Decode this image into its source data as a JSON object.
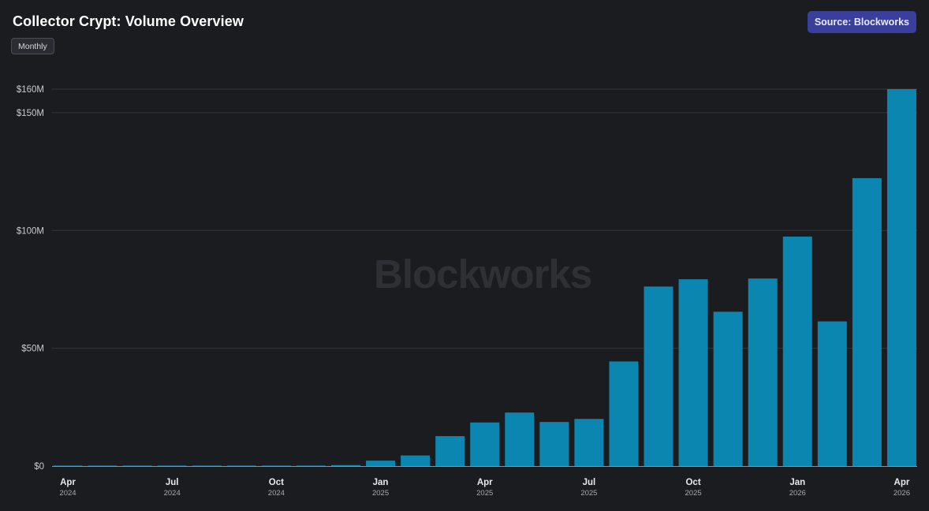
{
  "header": {
    "title": "Collector Crypt: Volume Overview",
    "period": "Monthly",
    "source": "Source: Blockworks"
  },
  "watermark": "Blockworks",
  "colors": {
    "background": "#1b1c20",
    "bar": "#0b86b0",
    "grid": "#34363c",
    "badge": "#3b3f9c"
  },
  "chart_data": {
    "type": "bar",
    "xlabel": "",
    "ylabel": "",
    "ylim": [
      0,
      160
    ],
    "y_unit": "$M",
    "grid": true,
    "y_ticks": [
      {
        "value": 0,
        "label": "$0"
      },
      {
        "value": 50,
        "label": "$50M"
      },
      {
        "value": 100,
        "label": "$100M"
      },
      {
        "value": 150,
        "label": "$150M"
      },
      {
        "value": 160,
        "label": "$160M"
      }
    ],
    "x_ticks": [
      {
        "month": "Apr",
        "year": "2024",
        "index": 0
      },
      {
        "month": "Jul",
        "year": "2024",
        "index": 3
      },
      {
        "month": "Oct",
        "year": "2024",
        "index": 6
      },
      {
        "month": "Jan",
        "year": "2025",
        "index": 9
      },
      {
        "month": "Apr",
        "year": "2025",
        "index": 12
      },
      {
        "month": "Jul",
        "year": "2025",
        "index": 15
      },
      {
        "month": "Oct",
        "year": "2025",
        "index": 18
      },
      {
        "month": "Jan",
        "year": "2026",
        "index": 21
      },
      {
        "month": "Apr",
        "year": "2026",
        "index": 24
      }
    ],
    "categories": [
      "2024-04",
      "2024-05",
      "2024-06",
      "2024-07",
      "2024-08",
      "2024-09",
      "2024-10",
      "2024-11",
      "2024-12",
      "2025-01",
      "2025-02",
      "2025-03",
      "2025-04",
      "2025-05",
      "2025-06",
      "2025-07",
      "2025-08",
      "2025-09",
      "2025-10",
      "2025-11",
      "2025-12",
      "2026-01",
      "2026-02",
      "2026-03",
      "2026-04"
    ],
    "values": [
      0.02,
      0.02,
      0.03,
      0.03,
      0.04,
      0.05,
      0.1,
      0.2,
      0.4,
      2.3,
      4.5,
      12.7,
      18.5,
      22.7,
      18.7,
      20.0,
      44.4,
      76.2,
      79.3,
      65.5,
      79.6,
      97.4,
      61.4,
      122.2,
      160.0
    ]
  }
}
